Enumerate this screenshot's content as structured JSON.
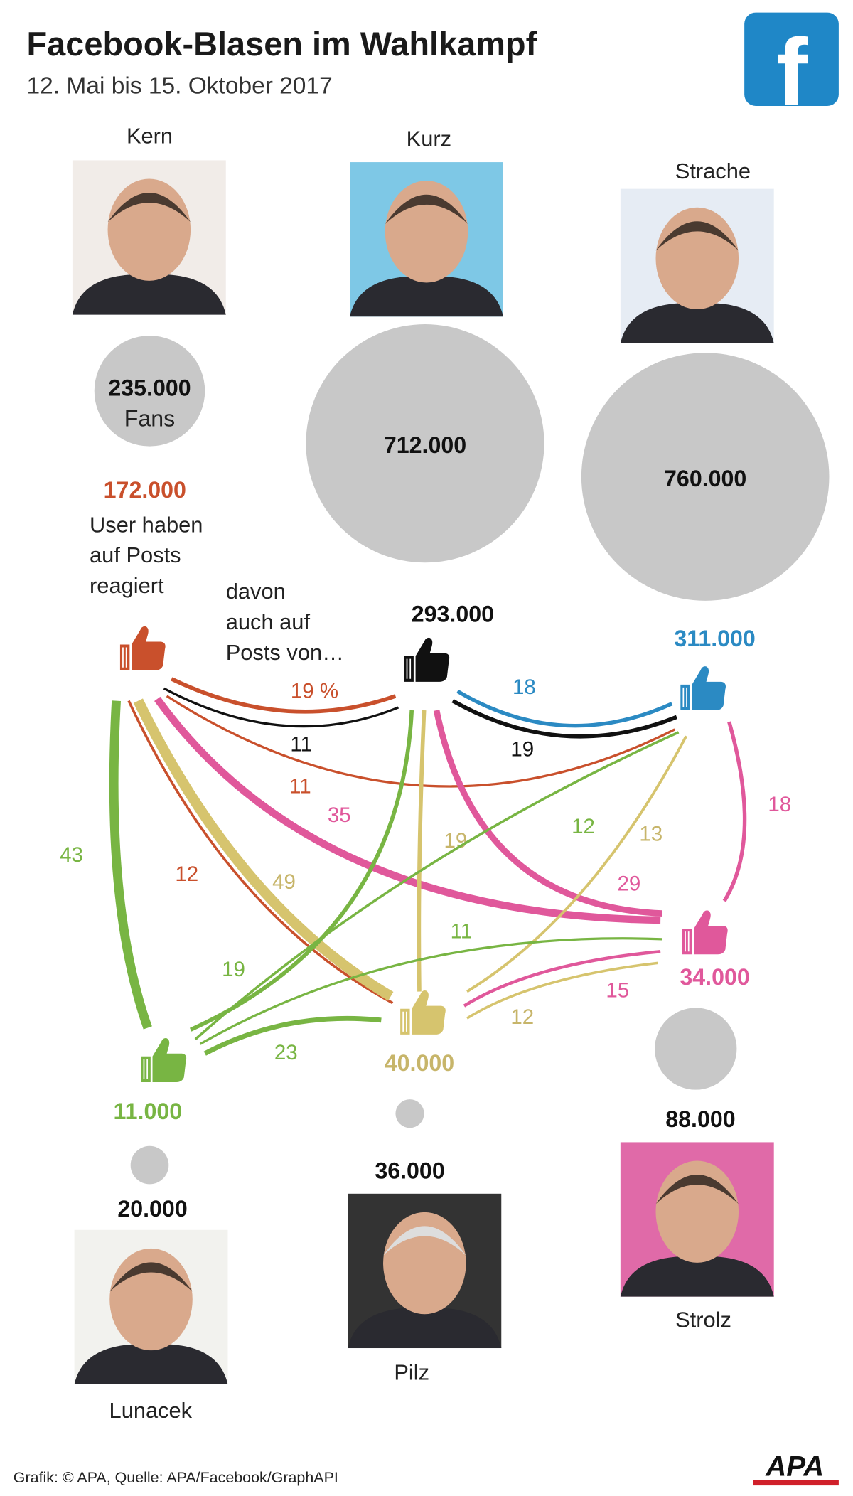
{
  "header": {
    "title": "Facebook-Blasen im Wahlkampf",
    "subtitle": "12. Mai bis 15. Oktober 2017",
    "logo_icon": "facebook-logo-icon"
  },
  "colors": {
    "kern": "#c9502c",
    "kurz": "#111111",
    "strache": "#2b8ac3",
    "strolz": "#e0589b",
    "pilz": "#d6c46e",
    "lunacek": "#78b543",
    "fans_circle": "#c8c8c8",
    "facebook": "#1f87c7",
    "apa_red": "#d0202a"
  },
  "legend": {
    "fans_suffix": "Fans",
    "reacted_lines": [
      "User haben",
      "auf Posts",
      "reagiert"
    ],
    "overlap_lines": [
      "davon",
      "auch auf",
      "Posts von…"
    ]
  },
  "politicians": [
    {
      "id": "kern",
      "name": "Kern",
      "fans": "235.000",
      "reacted_users": "172.000",
      "fans_value": 235000,
      "reacted_value": 172000
    },
    {
      "id": "kurz",
      "name": "Kurz",
      "fans": "712.000",
      "reacted_users": "293.000",
      "fans_value": 712000,
      "reacted_value": 293000
    },
    {
      "id": "strache",
      "name": "Strache",
      "fans": "760.000",
      "reacted_users": "311.000",
      "fans_value": 760000,
      "reacted_value": 311000
    },
    {
      "id": "strolz",
      "name": "Strolz",
      "fans": "88.000",
      "reacted_users": "34.000",
      "fans_value": 88000,
      "reacted_value": 34000
    },
    {
      "id": "pilz",
      "name": "Pilz",
      "fans": "36.000",
      "reacted_users": "40.000",
      "fans_value": 36000,
      "reacted_value": 40000
    },
    {
      "id": "lunacek",
      "name": "Lunacek",
      "fans": "20.000",
      "reacted_users": "11.000",
      "fans_value": 20000,
      "reacted_value": 11000
    }
  ],
  "edges": [
    {
      "from": "kern",
      "to": "kurz",
      "value": 19,
      "label": "19 %"
    },
    {
      "from": "kurz",
      "to": "kern",
      "value": 11,
      "label": "11"
    },
    {
      "from": "strache",
      "to": "kurz",
      "value": 18,
      "label": "18"
    },
    {
      "from": "kurz",
      "to": "strache",
      "value": 19,
      "label": "19"
    },
    {
      "from": "kern",
      "to": "strache",
      "value": 11,
      "label": "11"
    },
    {
      "from": "lunacek",
      "to": "kern",
      "value": 43,
      "label": "43"
    },
    {
      "from": "kern",
      "to": "pilz",
      "value": 12,
      "label": "12"
    },
    {
      "from": "pilz",
      "to": "kern",
      "value": 49,
      "label": "49"
    },
    {
      "from": "strolz",
      "to": "kern",
      "value": 35,
      "label": "35"
    },
    {
      "from": "lunacek",
      "to": "kurz",
      "value": 19,
      "label": "19"
    },
    {
      "from": "pilz",
      "to": "kurz",
      "value": 19,
      "label": "19"
    },
    {
      "from": "strolz",
      "to": "kurz",
      "value": 29,
      "label": "29"
    },
    {
      "from": "lunacek",
      "to": "strache",
      "value": 12,
      "label": "12"
    },
    {
      "from": "pilz",
      "to": "strache",
      "value": 13,
      "label": "13"
    },
    {
      "from": "strolz",
      "to": "strache",
      "value": 18,
      "label": "18"
    },
    {
      "from": "lunacek",
      "to": "strolz",
      "value": 11,
      "label": "11"
    },
    {
      "from": "strolz",
      "to": "pilz",
      "value": 15,
      "label": "15"
    },
    {
      "from": "pilz",
      "to": "strolz",
      "value": 12,
      "label": "12"
    },
    {
      "from": "lunacek",
      "to": "pilz",
      "value": 23,
      "label": "23"
    }
  ],
  "footer": {
    "source": "Grafik: © APA, Quelle: APA/Facebook/GraphAPI",
    "agency_logo": "APA"
  }
}
